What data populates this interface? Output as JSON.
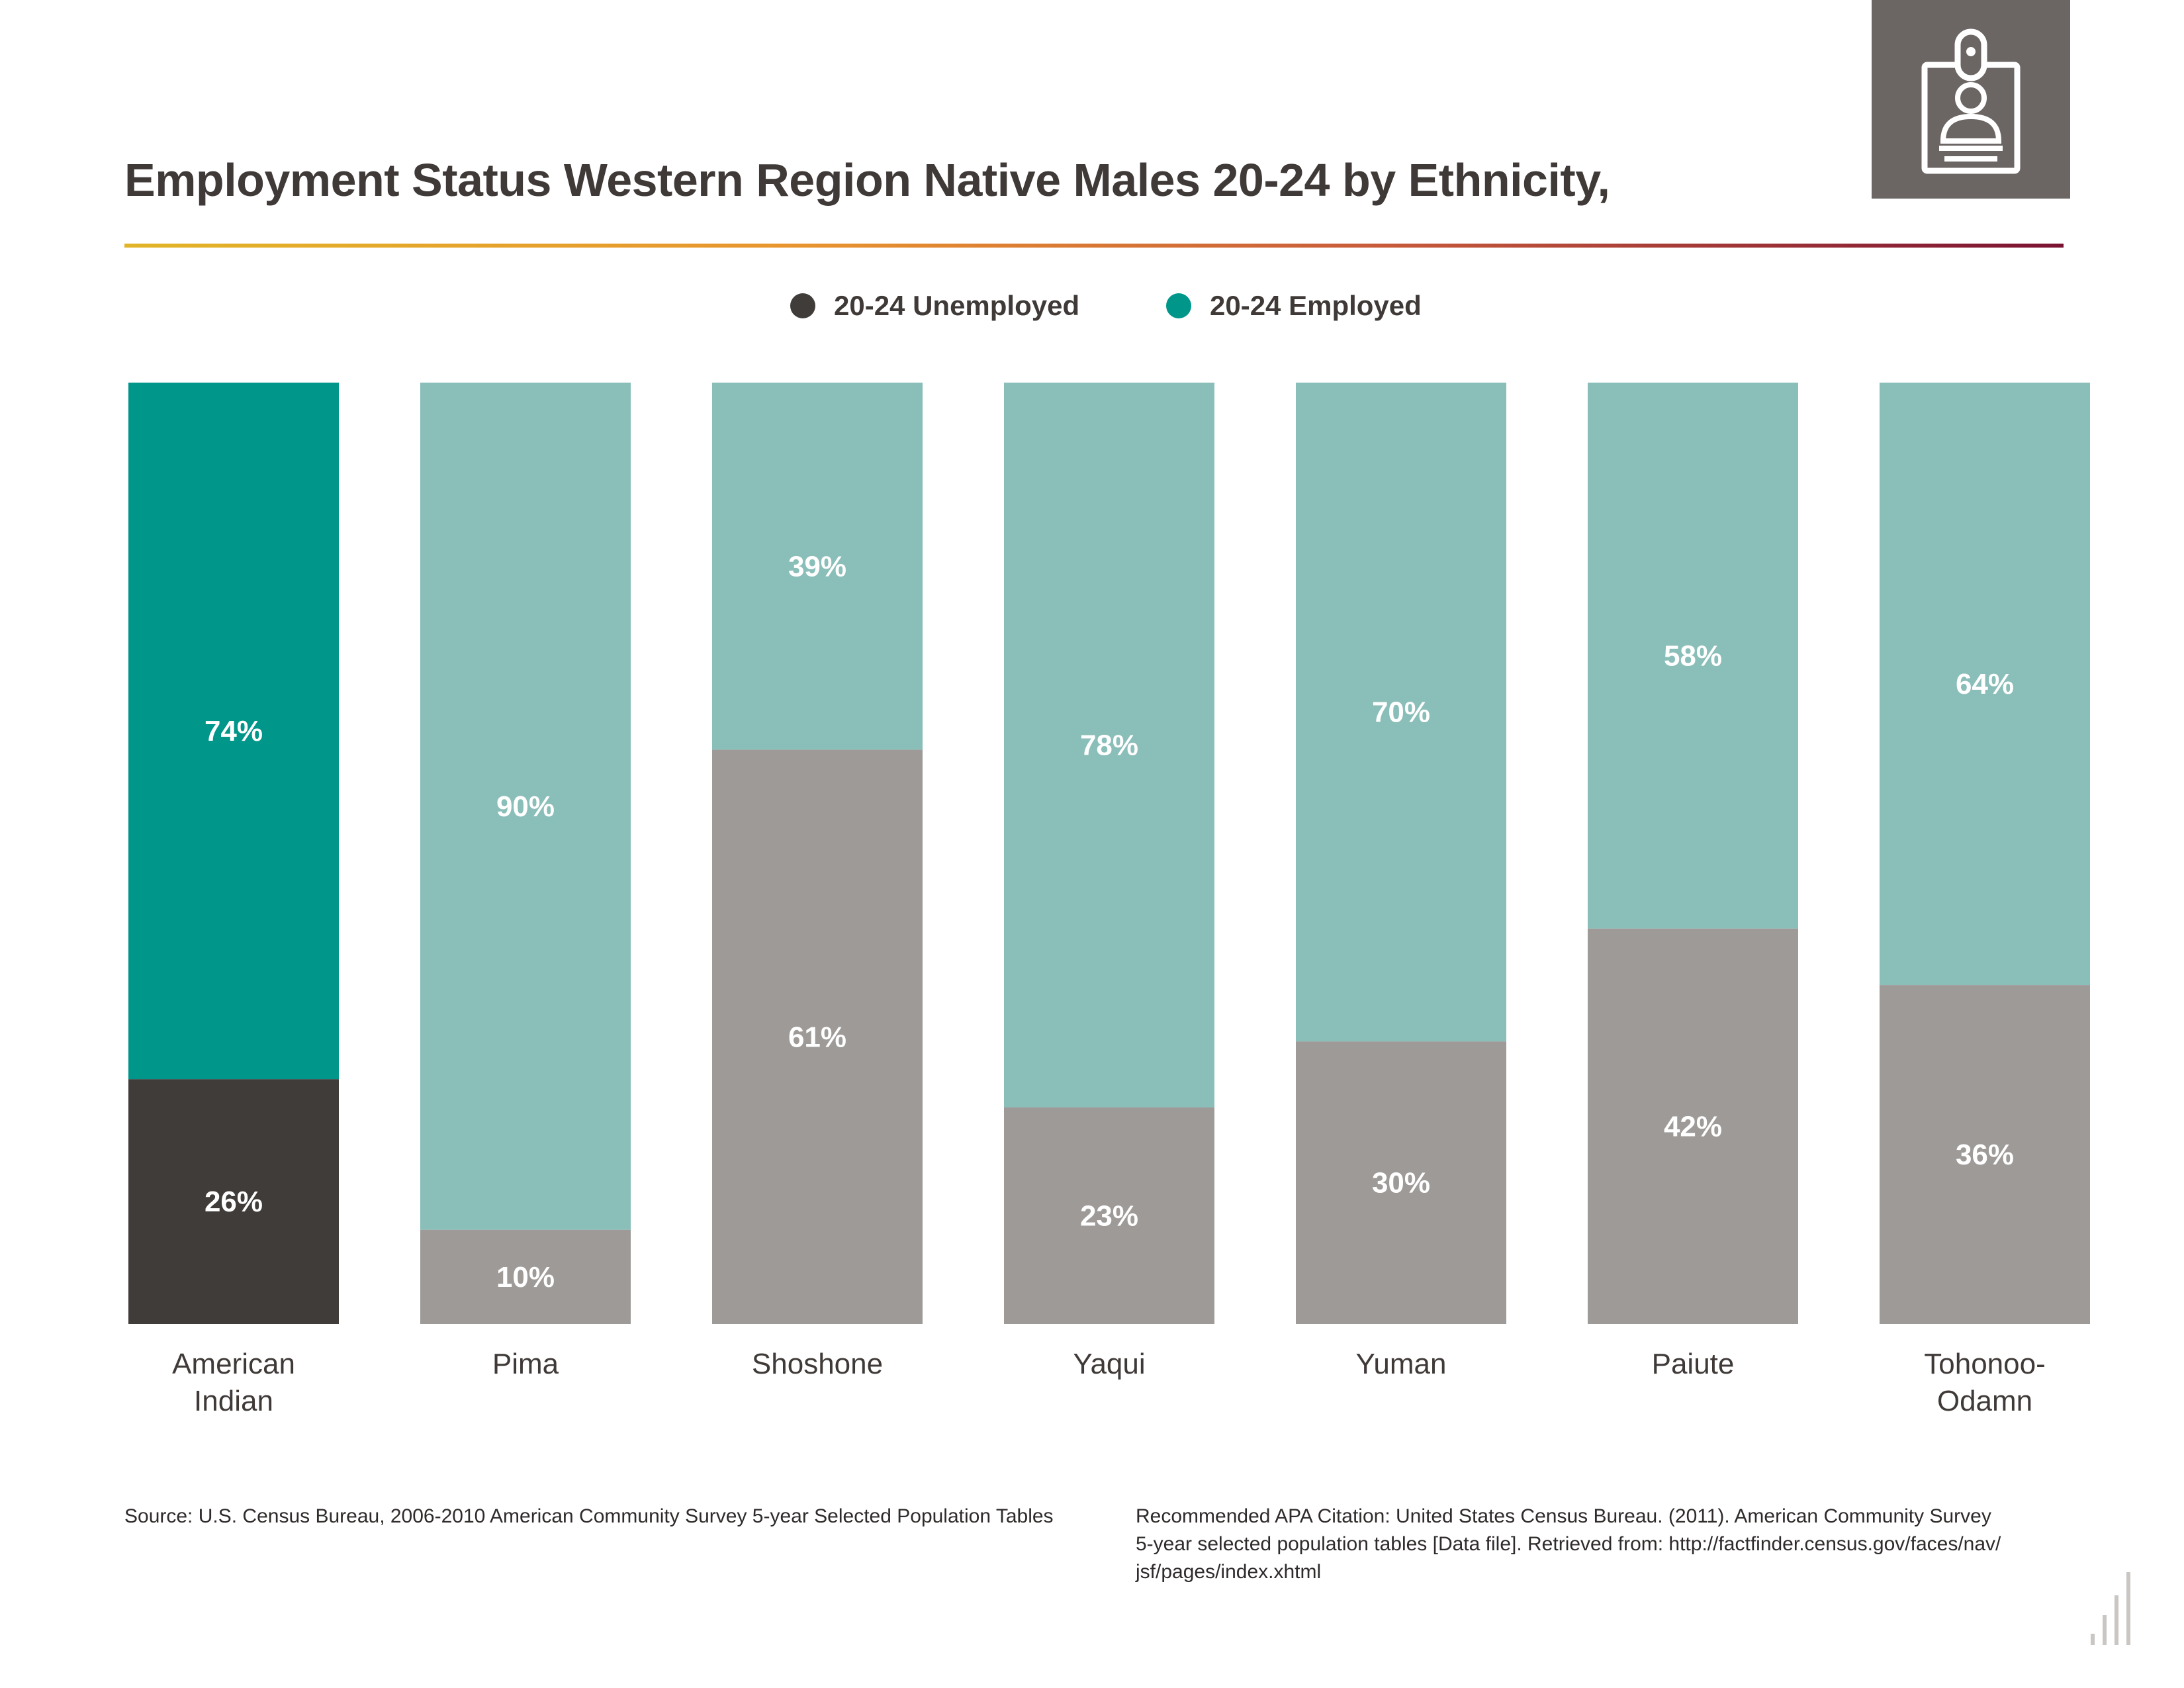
{
  "header": {
    "title": "Employment Status Western Region Native Males 20-24 by Ethnicity,"
  },
  "badge": {
    "icon": "id-badge-icon"
  },
  "legend": {
    "items": [
      {
        "label": "20-24 Unemployed",
        "color": "#403c3a"
      },
      {
        "label": "20-24 Employed",
        "color": "#00968a"
      }
    ]
  },
  "chart_data": {
    "type": "bar",
    "stacked": true,
    "categories": [
      "American Indian",
      "Pima",
      "Shoshone",
      "Yaqui",
      "Yuman",
      "Paiute",
      "Tohonoo-Odamn"
    ],
    "category_lines": [
      [
        "American",
        "Indian"
      ],
      [
        "Pima"
      ],
      [
        "Shoshone"
      ],
      [
        "Yaqui"
      ],
      [
        "Yuman"
      ],
      [
        "Paiute"
      ],
      [
        "Tohonoo-",
        "Odamn"
      ]
    ],
    "series": [
      {
        "name": "20-24 Unemployed",
        "values": [
          26,
          10,
          61,
          23,
          30,
          42,
          36
        ],
        "labels": [
          "26%",
          "10%",
          "61%",
          "23%",
          "30%",
          "42%",
          "36%"
        ]
      },
      {
        "name": "20-24 Employed",
        "values": [
          74,
          90,
          39,
          78,
          70,
          58,
          64
        ],
        "labels": [
          "74%",
          "90%",
          "39%",
          "78%",
          "70%",
          "58%",
          "64%"
        ]
      }
    ],
    "ylim": [
      0,
      100
    ],
    "grid": false,
    "legend_position": "top-center",
    "colors": {
      "highlight_unemployed": "#403c3a",
      "highlight_employed": "#00968a",
      "unemployed": "#9e9a98",
      "employed": "#8abeb8",
      "label": "#ffffff"
    },
    "highlight_index": 0
  },
  "footer": {
    "source": "Source:  U.S. Census Bureau, 2006-2010 American Community Survey 5-year Selected Population Tables",
    "citation_lines": [
      "Recommended APA Citation: United States Census Bureau. (2011). American Community Survey",
      "5-year selected population tables [Data file]. Retrieved from: http://factfinder.census.gov/faces/nav/",
      "jsf/pages/index.xhtml"
    ]
  }
}
